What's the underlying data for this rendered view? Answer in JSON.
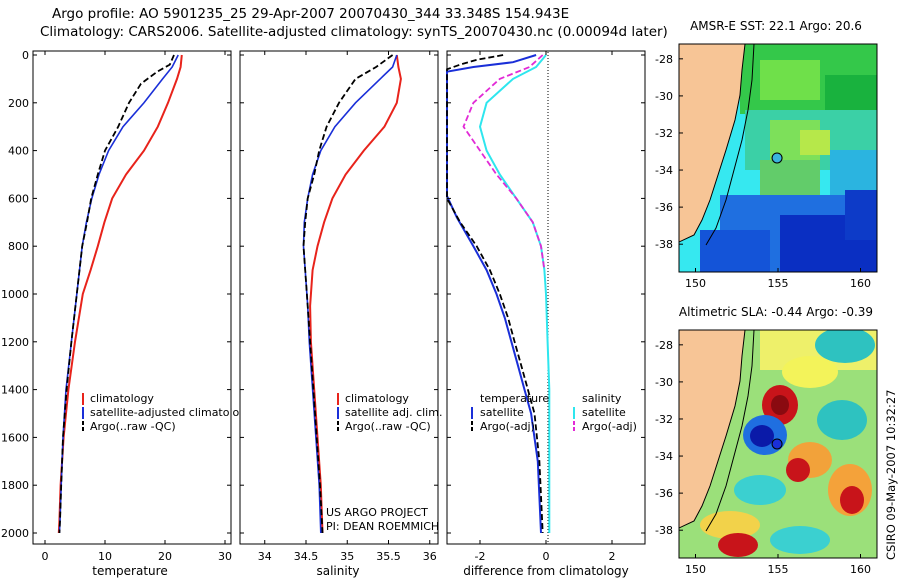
{
  "title": {
    "line1": "Argo profile: AO 5901235_25 29-Apr-2007 20070430_344 33.348S 154.943E",
    "line2": "Climatology: CARS2006. Satellite-adjusted climatology: synTS_20070430.nc (0.00094d later)"
  },
  "colors": {
    "climatology": "#e8231b",
    "satellite": "#1a2fd8",
    "argo": "#000000",
    "satellite_salinity": "#2ee6ee",
    "argo_adj_salinity": "#e22ad6",
    "land": "#f7c596"
  },
  "chart_data": [
    {
      "type": "line",
      "title": "",
      "xlabel": "temperature",
      "ylabel": "",
      "xlim": [
        -2,
        31
      ],
      "ylim": [
        0,
        2080
      ],
      "xticks": [
        "0",
        "10",
        "20",
        "30"
      ],
      "yticks": [
        "0",
        "200",
        "400",
        "600",
        "800",
        "1000",
        "1200",
        "1400",
        "1600",
        "1800",
        "2000"
      ],
      "series": [
        {
          "name": "climatology",
          "x": [
            22.8,
            22.6,
            22.0,
            20.5,
            18.8,
            16.5,
            13.5,
            11.2,
            9.9,
            8.8,
            7.6,
            6.3,
            5.0,
            3.9,
            3.1,
            2.6,
            2.4,
            2.3
          ],
          "y": [
            0,
            50,
            100,
            200,
            300,
            400,
            500,
            600,
            700,
            800,
            900,
            1000,
            1200,
            1400,
            1600,
            1800,
            1950,
            2000
          ]
        },
        {
          "name": "satellite-adjusted climatology",
          "x": [
            22.2,
            21.2,
            19.6,
            16.5,
            13.0,
            10.6,
            9.0,
            7.8,
            6.9,
            6.2,
            5.3,
            4.4,
            3.5,
            3.0,
            2.7,
            2.5,
            2.4
          ],
          "y": [
            0,
            50,
            100,
            200,
            300,
            400,
            500,
            600,
            700,
            800,
            1000,
            1200,
            1400,
            1600,
            1800,
            1950,
            2000
          ]
        },
        {
          "name": "Argo(..raw -QC)",
          "x": [
            21.5,
            20.8,
            18.7,
            16.0,
            14.0,
            12.2,
            10.0,
            8.8,
            7.7,
            7.0,
            6.2,
            5.3,
            4.4,
            3.6,
            3.0,
            2.7,
            2.5,
            2.4
          ],
          "y": [
            0,
            40,
            70,
            120,
            200,
            300,
            400,
            500,
            600,
            700,
            800,
            1000,
            1200,
            1400,
            1600,
            1800,
            1950,
            2000
          ]
        }
      ],
      "legend": [
        "climatology",
        "satellite-adjusted climatology",
        "Argo(..raw -QC)"
      ]
    },
    {
      "type": "line",
      "xlabel": "salinity",
      "xlim": [
        33.7,
        36.1
      ],
      "ylim": [
        0,
        2080
      ],
      "xticks": [
        "34",
        "34.5",
        "35",
        "35.5",
        "36"
      ],
      "series": [
        {
          "name": "climatology",
          "x": [
            35.6,
            35.62,
            35.65,
            35.6,
            35.45,
            35.2,
            34.98,
            34.82,
            34.72,
            34.64,
            34.58,
            34.55,
            34.56,
            34.6,
            34.64,
            34.68,
            34.7
          ],
          "y": [
            0,
            50,
            100,
            200,
            300,
            400,
            500,
            600,
            700,
            800,
            900,
            1050,
            1200,
            1400,
            1600,
            1800,
            2000
          ]
        },
        {
          "name": "satellite adj. clim.",
          "x": [
            35.6,
            35.55,
            35.4,
            35.1,
            34.85,
            34.68,
            34.58,
            34.52,
            34.48,
            34.47,
            34.49,
            34.52,
            34.54,
            34.58,
            34.62,
            34.66,
            34.68
          ],
          "y": [
            0,
            50,
            100,
            200,
            300,
            400,
            500,
            600,
            700,
            800,
            900,
            1050,
            1200,
            1400,
            1600,
            1800,
            2000
          ]
        },
        {
          "name": "Argo(..raw -QC)",
          "x": [
            35.55,
            35.35,
            35.1,
            34.9,
            34.75,
            34.66,
            34.6,
            34.52,
            34.49,
            34.47,
            34.49,
            34.52,
            34.55,
            34.59,
            34.63,
            34.67,
            34.7
          ],
          "y": [
            0,
            50,
            100,
            200,
            300,
            400,
            500,
            600,
            700,
            800,
            900,
            1050,
            1200,
            1400,
            1600,
            1800,
            2000
          ]
        }
      ],
      "legend": [
        "climatology",
        "satellite adj. clim.",
        "Argo(..raw -QC)"
      ]
    },
    {
      "type": "line",
      "xlabel": "difference from climatology",
      "xlim": [
        -3,
        3
      ],
      "ylim": [
        0,
        2080
      ],
      "xticks": [
        "-2",
        "0",
        "2"
      ],
      "series": [
        {
          "name": "temperature satellite",
          "x": [
            -0.3,
            -1.0,
            -2.2,
            -3.0,
            -3.0,
            -2.7,
            -2.2,
            -1.8,
            -1.5,
            -1.25,
            -1.05,
            -0.85,
            -0.65,
            -0.45,
            -0.25,
            -0.15
          ],
          "y": [
            0,
            30,
            50,
            70,
            590,
            680,
            800,
            900,
            1000,
            1100,
            1200,
            1300,
            1400,
            1500,
            1700,
            2000
          ]
        },
        {
          "name": "temperature Argo(-adj)",
          "x": [
            -1.3,
            -2.1,
            -2.6,
            -3.0,
            -3.0,
            -2.6,
            -2.1,
            -1.7,
            -1.4,
            -1.15,
            -0.95,
            -0.75,
            -0.55,
            -0.35,
            -0.2,
            -0.1
          ],
          "y": [
            0,
            20,
            40,
            60,
            600,
            700,
            800,
            900,
            1000,
            1100,
            1200,
            1300,
            1400,
            1500,
            1700,
            2000
          ]
        },
        {
          "name": "salinity satellite",
          "x": [
            0.0,
            -0.3,
            -1.0,
            -1.8,
            -2.0,
            -1.8,
            -1.4,
            -0.9,
            -0.4,
            -0.15,
            -0.05,
            0.0,
            0.05,
            0.1,
            0.1,
            0.1
          ],
          "y": [
            0,
            50,
            100,
            200,
            300,
            400,
            500,
            600,
            700,
            800,
            900,
            1000,
            1200,
            1400,
            1700,
            2000
          ]
        },
        {
          "name": "salinity Argo(-adj)",
          "x": [
            -0.1,
            -0.5,
            -1.4,
            -2.2,
            -2.5,
            -2.0,
            -1.5,
            -0.9,
            -0.4,
            -0.15,
            -0.05
          ],
          "y": [
            0,
            50,
            100,
            200,
            300,
            400,
            500,
            600,
            700,
            800,
            900
          ]
        }
      ],
      "legend": [
        "temperature",
        "satellite",
        "Argo(-adj)",
        "salinity",
        "satellite",
        "Argo(-adj)"
      ]
    }
  ],
  "panels": {
    "temp": {
      "xlabel": "temperature",
      "xticks": [
        "0",
        "10",
        "20",
        "30"
      ]
    },
    "sal": {
      "xlabel": "salinity",
      "xticks": [
        "34",
        "34.5",
        "35",
        "35.5",
        "36"
      ],
      "project_line1": "US ARGO PROJECT",
      "project_line2": "PI: DEAN ROEMMICH"
    },
    "diff": {
      "xlabel": "difference from climatology",
      "xticks": [
        "-2",
        "0",
        "2"
      ],
      "legend_temp_title": "temperature",
      "legend_sal_title": "salinity"
    },
    "depth_ticks": [
      "0",
      "200",
      "400",
      "600",
      "800",
      "1000",
      "1200",
      "1400",
      "1600",
      "1800",
      "2000"
    ],
    "legend_temp": [
      "climatology",
      "satellite-adjusted climatolog",
      "Argo(..raw -QC)"
    ],
    "legend_sal": [
      "climatology",
      "satellite adj. clim.",
      "Argo(..raw -QC)"
    ],
    "legend_diff_temp": [
      "satellite",
      "Argo(-adj)"
    ],
    "legend_diff_sal": [
      "satellite",
      "Argo(-adj)"
    ]
  },
  "maps": {
    "sst": {
      "title": "AMSR-E SST: 22.1 Argo: 20.6",
      "yticks": [
        "-28",
        "-30",
        "-32",
        "-34",
        "-36",
        "-38"
      ],
      "xticks": [
        "150",
        "155",
        "160"
      ]
    },
    "sla": {
      "title": "Altimetric SLA: -0.44 Argo: -0.39",
      "yticks": [
        "-28",
        "-30",
        "-32",
        "-34",
        "-36",
        "-38"
      ],
      "xticks": [
        "150",
        "155",
        "160"
      ]
    },
    "float_position": {
      "lon": 154.943,
      "lat": -33.348
    }
  },
  "credit": "CSIRO 09-May-2007 10:32:27"
}
